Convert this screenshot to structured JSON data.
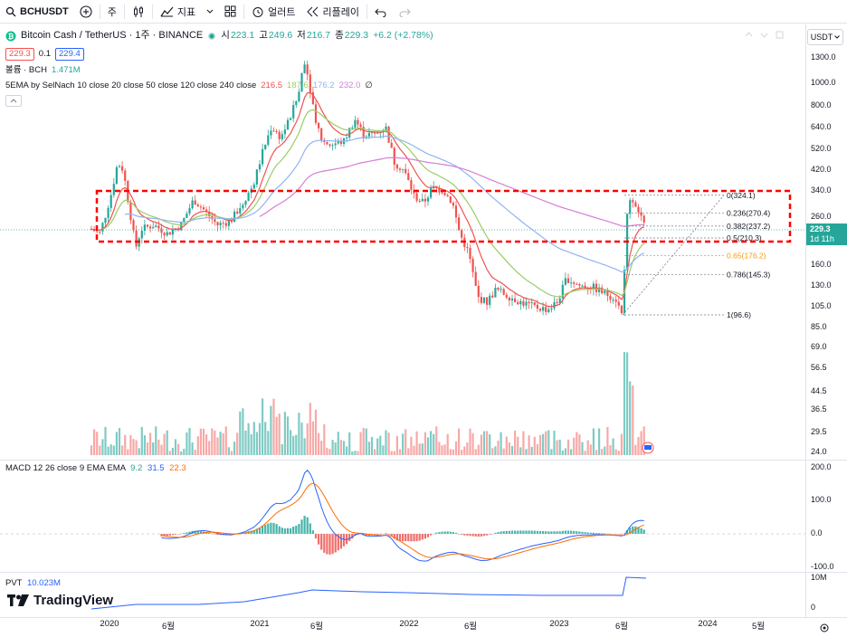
{
  "toolbar": {
    "symbol": "BCHUSDT",
    "interval": "주",
    "indicators_label": "지표",
    "alert_label": "얼러트",
    "replay_label": "리플레이"
  },
  "symbol_info": {
    "title": "Bitcoin Cash / TetherUS · 1주 · BINANCE",
    "open_label": "시",
    "open": "223.1",
    "high_label": "고",
    "high": "249.6",
    "low_label": "저",
    "low": "216.7",
    "close_label": "종",
    "close": "229.3",
    "change": "+6.2 (+2.78%)",
    "sell_price": "229.3",
    "spread": "0.1",
    "buy_price": "229.4",
    "volume_label": "볼륨 · BCH",
    "volume_value": "1.471M"
  },
  "ema": {
    "label": "5EMA by SelNach 10 close 20 close 50 close 120 close 240 close",
    "values": [
      "216.5",
      "187.6",
      "176.2",
      "232.0"
    ],
    "empty_value": "∅"
  },
  "macd": {
    "label": "MACD 12 26 close 9 EMA EMA",
    "values": [
      "9.2",
      "31.5",
      "22.3"
    ]
  },
  "pvt": {
    "label": "PVT",
    "value": "10.023M"
  },
  "price_axis": {
    "currency": "USDT",
    "ticks": [
      "1300.0",
      "1000.0",
      "800.0",
      "640.0",
      "520.0",
      "420.0",
      "340.0",
      "260.0",
      "200.0",
      "160.0",
      "130.0",
      "105.0",
      "85.0",
      "69.0",
      "56.5",
      "44.5",
      "36.5",
      "29.5",
      "24.0"
    ],
    "current_price": "229.3",
    "countdown": "1d 11h",
    "macd_ticks": [
      "200.0",
      "100.0",
      "0.0",
      "-100.0"
    ],
    "pvt_ticks": [
      "10M",
      "0"
    ]
  },
  "fib_levels": [
    {
      "label": "0(324.1)",
      "price": 324.1
    },
    {
      "label": "0.236(270.4)",
      "price": 270.4
    },
    {
      "label": "0.382(237.2)",
      "price": 237.2
    },
    {
      "label": "0.5(210.3)",
      "price": 210.3
    },
    {
      "label": "0.65(176.2)",
      "price": 176.2
    },
    {
      "label": "0.786(145.3)",
      "price": 145.3
    },
    {
      "label": "1(96.6)",
      "price": 96.6
    }
  ],
  "time_axis": [
    "2020",
    "6월",
    "2021",
    "6월",
    "2022",
    "6월",
    "2023",
    "6월",
    "2024",
    "5월"
  ],
  "brand": "TradingView",
  "colors": {
    "up": "#26a69a",
    "down": "#ef5350",
    "ema10": "#ef5350",
    "ema20": "#9ccc65",
    "ema50": "#90b4f0",
    "ema120": "#d47fd4",
    "macd_line": "#2962ff",
    "signal_line": "#ff6d00",
    "pvt_line": "#2962ff",
    "highlight_box": "#ff0000"
  }
}
